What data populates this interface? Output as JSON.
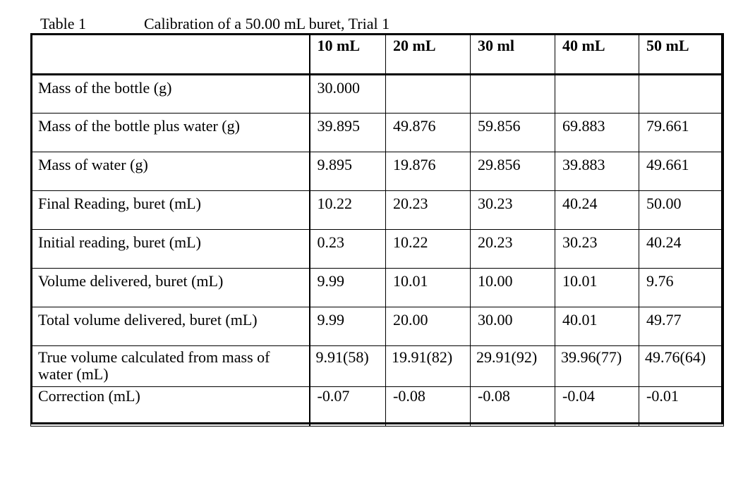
{
  "caption": {
    "label": "Table 1",
    "title": "Calibration of a 50.00 mL buret, Trial 1"
  },
  "table": {
    "header": [
      "",
      "10 mL",
      "20 mL",
      "30 ml",
      "40 mL",
      "50 mL"
    ],
    "rows": [
      {
        "label": "Mass of the bottle (g)",
        "cells": [
          "30.000",
          "",
          "",
          "",
          ""
        ]
      },
      {
        "label": "Mass of the bottle plus water (g)",
        "cells": [
          "39.895",
          "49.876",
          "59.856",
          "69.883",
          "79.661"
        ]
      },
      {
        "label": "Mass of water (g)",
        "cells": [
          "9.895",
          "19.876",
          "29.856",
          "39.883",
          "49.661"
        ]
      },
      {
        "label": "Final Reading, buret (mL)",
        "cells": [
          "10.22",
          "20.23",
          "30.23",
          "40.24",
          "50.00"
        ]
      },
      {
        "label": "Initial reading, buret (mL)",
        "cells": [
          "0.23",
          "10.22",
          "20.23",
          "30.23",
          "40.24"
        ]
      },
      {
        "label": "Volume delivered, buret (mL)",
        "cells": [
          "9.99",
          "10.01",
          "10.00",
          "10.01",
          "9.76"
        ]
      },
      {
        "label": "Total volume delivered, buret (mL)",
        "cells": [
          "9.99",
          "20.00",
          "30.00",
          "40.01",
          "49.77"
        ]
      },
      {
        "label": "True volume calculated from mass of water (mL)",
        "cells": [
          "9.91(58)",
          "19.91(82)",
          "29.91(92)",
          "39.96(77)",
          "49.76(64)"
        ]
      },
      {
        "label": "Correction (mL)",
        "cells": [
          "-0.07",
          "-0.08",
          "-0.08",
          "-0.04",
          "-0.01"
        ]
      }
    ]
  }
}
